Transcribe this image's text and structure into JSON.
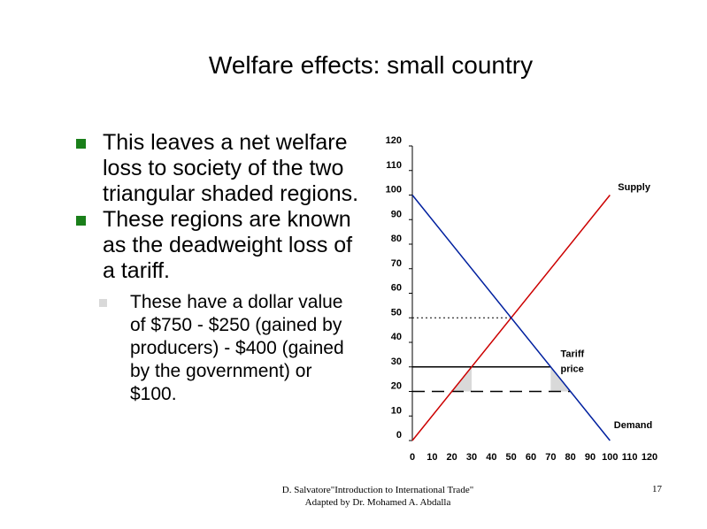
{
  "slide": {
    "title": "Welfare effects: small country",
    "bullets": [
      "This leaves a net welfare loss to society of the two triangular shaded regions.",
      "These regions are known as the deadweight loss of a tariff."
    ],
    "sub_bullet": "These have a dollar value of $750 - $250 (gained by producers) - $400 (gained by the government) or $100.",
    "footer_line1": "D. Salvatore\"Introduction to International Trade\"",
    "footer_line2": "Adapted by Dr. Mohamed A. Abdalla",
    "page_number": "17",
    "colors": {
      "bullet": "#1a7f1a",
      "sub_bullet": "#d9d9d9"
    }
  },
  "chart_data": {
    "type": "line",
    "xlim": [
      0,
      120
    ],
    "ylim": [
      0,
      120
    ],
    "x_ticks": [
      "0",
      "10",
      "20",
      "30",
      "40",
      "50",
      "60",
      "70",
      "80",
      "90",
      "100",
      "110",
      "120"
    ],
    "y_ticks": [
      "0",
      "10",
      "20",
      "30",
      "40",
      "50",
      "60",
      "70",
      "80",
      "90",
      "100",
      "110",
      "120"
    ],
    "series": [
      {
        "name": "Supply",
        "color": "#cc0000",
        "points": [
          [
            0,
            0
          ],
          [
            100,
            100
          ]
        ]
      },
      {
        "name": "Demand",
        "color": "#00209f",
        "points": [
          [
            0,
            100
          ],
          [
            100,
            0
          ]
        ]
      }
    ],
    "equilibrium": {
      "x": 50,
      "y": 50
    },
    "tariff_price_line": {
      "y": 30,
      "x_range": [
        0,
        70
      ]
    },
    "world_price_line": {
      "y": 20,
      "x_range": [
        0,
        80
      ]
    },
    "deadweight_triangles": [
      [
        [
          20,
          20
        ],
        [
          30,
          30
        ],
        [
          30,
          20
        ]
      ],
      [
        [
          70,
          30
        ],
        [
          70,
          20
        ],
        [
          80,
          20
        ]
      ]
    ],
    "annotations": [
      {
        "text": "Supply",
        "x": 104,
        "y": 102
      },
      {
        "text": "Demand",
        "x": 102,
        "y": 5
      },
      {
        "text": "Tariff",
        "x": 75,
        "y": 34
      },
      {
        "text": "price",
        "x": 75,
        "y": 28
      }
    ]
  }
}
